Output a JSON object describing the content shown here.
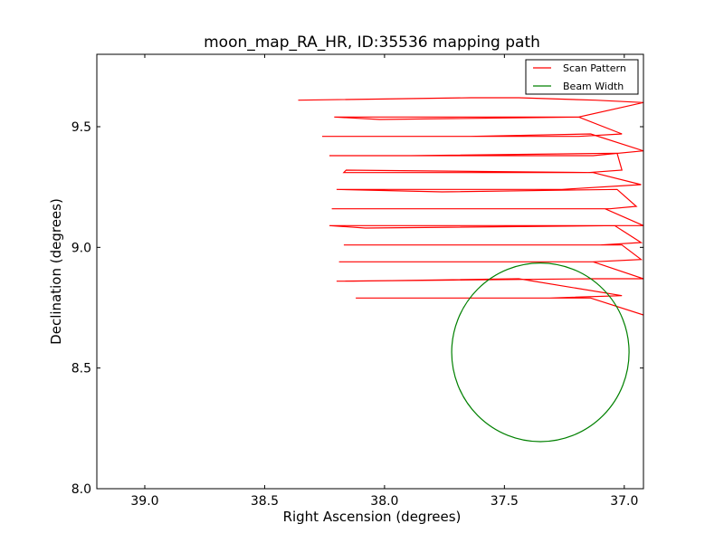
{
  "chart_data": {
    "type": "line",
    "title": "moon_map_RA_HR, ID:35536 mapping path",
    "xlabel": "Right Ascension (degrees)",
    "ylabel": "Declination (degrees)",
    "xlim": [
      39.2,
      36.92
    ],
    "ylim": [
      8.0,
      9.8
    ],
    "x_reversed": true,
    "xticks": [
      39.0,
      38.5,
      38.0,
      37.5,
      37.0
    ],
    "xtick_labels": [
      "39.0",
      "38.5",
      "38.0",
      "37.5",
      "37.0"
    ],
    "yticks": [
      8.0,
      8.5,
      9.0,
      9.5
    ],
    "ytick_labels": [
      "8.0",
      "8.5",
      "9.0",
      "9.5"
    ],
    "grid": false,
    "legend": {
      "placement": "top-right",
      "entries": [
        "Scan Pattern",
        "Beam Width"
      ]
    },
    "series": [
      {
        "name": "Scan Pattern",
        "type": "line",
        "color": "#ff0000",
        "x": [
          38.36,
          37.64,
          37.44,
          37.12,
          36.92,
          37.19,
          38.21,
          38.02,
          37.19,
          37.01,
          37.19,
          38.26,
          37.64,
          37.14,
          36.92,
          37.13,
          38.23,
          37.89,
          37.03,
          37.01,
          37.15,
          38.17,
          38.16,
          37.13,
          36.93,
          37.26,
          38.2,
          37.76,
          37.03,
          36.95,
          37.06,
          38.22,
          37.75,
          37.08,
          36.92,
          37.13,
          38.23,
          38.08,
          37.04,
          36.93,
          37.1,
          38.17,
          38.06,
          37.01,
          36.93,
          37.13,
          38.19,
          38.16,
          37.13,
          36.92,
          37.13,
          38.2,
          38.13,
          37.44,
          37.01,
          37.31,
          38.12,
          37.64,
          37.14,
          36.92
        ],
        "y": [
          9.61,
          9.62,
          9.62,
          9.61,
          9.6,
          9.54,
          9.54,
          9.53,
          9.54,
          9.47,
          9.46,
          9.46,
          9.46,
          9.47,
          9.4,
          9.38,
          9.38,
          9.38,
          9.39,
          9.32,
          9.31,
          9.31,
          9.32,
          9.31,
          9.26,
          9.24,
          9.24,
          9.23,
          9.24,
          9.17,
          9.16,
          9.16,
          9.16,
          9.16,
          9.09,
          9.09,
          9.09,
          9.08,
          9.09,
          9.02,
          9.01,
          9.01,
          9.01,
          9.01,
          8.95,
          8.94,
          8.94,
          8.94,
          8.94,
          8.87,
          8.87,
          8.86,
          8.86,
          8.87,
          8.8,
          8.79,
          8.79,
          8.79,
          8.79,
          8.72
        ]
      },
      {
        "name": "Beam Width",
        "type": "circle",
        "color": "#008000",
        "center": {
          "x": 37.35,
          "y": 8.565
        },
        "radius_deg": 0.37
      }
    ]
  }
}
